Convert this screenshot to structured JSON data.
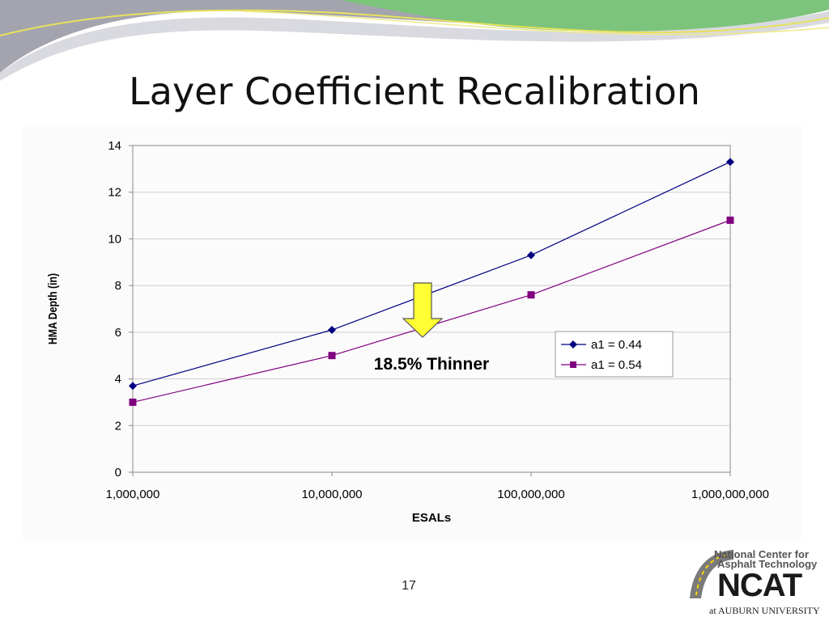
{
  "slide": {
    "title": "Layer Coefficient Recalibration",
    "page_number": "17",
    "colors": {
      "swoosh_gray": "#8f8f9a",
      "swoosh_green": "#7bc67a",
      "swoosh_yellow": "#e8e25a"
    }
  },
  "annotation": {
    "text": "18.5% Thinner",
    "arrow_color": "#ffff33",
    "arrow_icon": "down-arrow-icon"
  },
  "logo": {
    "line1": "National Center for",
    "line2": "Asphalt Technology",
    "acronym": "NCAT",
    "university": "at AUBURN UNIVERSITY"
  },
  "chart_data": {
    "type": "line",
    "x_scale": "log",
    "x": [
      1000000,
      10000000,
      100000000,
      1000000000
    ],
    "x_tick_labels": [
      "1,000,000",
      "10,000,000",
      "100,000,000",
      "1,000,000,000"
    ],
    "xlabel": "ESALs",
    "ylabel": "HMA Depth (in)",
    "ylim": [
      0,
      14
    ],
    "y_ticks": [
      0,
      2,
      4,
      6,
      8,
      10,
      12,
      14
    ],
    "grid": "horizontal",
    "legend_position": "right",
    "series": [
      {
        "name": "a1 = 0.44",
        "color": "#000080",
        "marker": "diamond",
        "values": [
          3.7,
          6.1,
          9.3,
          13.3
        ]
      },
      {
        "name": "a1 = 0.54",
        "color": "#800080",
        "marker": "square",
        "values": [
          3.0,
          5.0,
          7.6,
          10.8
        ]
      }
    ]
  }
}
